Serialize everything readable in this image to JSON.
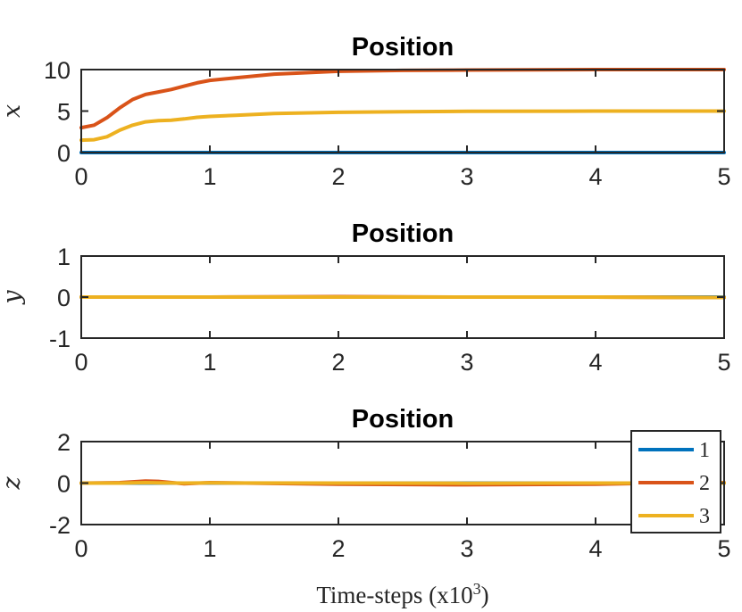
{
  "chart_data": [
    {
      "type": "line",
      "title": "Position",
      "ylabel": "x",
      "xlim": [
        0,
        5
      ],
      "ylim": [
        0,
        10
      ],
      "xticks": [
        "0",
        "1",
        "2",
        "3",
        "4",
        "5"
      ],
      "yticks": [
        "0",
        "5",
        "10"
      ],
      "x": [
        0,
        0.1,
        0.2,
        0.3,
        0.4,
        0.5,
        0.6,
        0.7,
        0.8,
        0.9,
        1.0,
        1.2,
        1.5,
        2.0,
        2.5,
        3.0,
        4.0,
        5.0
      ],
      "series": [
        {
          "name": "1",
          "color": "#0072BD",
          "values": [
            0,
            0,
            0,
            0,
            0,
            0,
            0,
            0,
            0,
            0,
            0,
            0,
            0,
            0,
            0,
            0,
            0,
            0
          ]
        },
        {
          "name": "2",
          "color": "#D95319",
          "values": [
            3.0,
            3.3,
            4.2,
            5.4,
            6.4,
            7.0,
            7.3,
            7.6,
            8.0,
            8.4,
            8.7,
            9.0,
            9.45,
            9.8,
            9.9,
            9.95,
            10.0,
            10.0
          ]
        },
        {
          "name": "3",
          "color": "#EDB120",
          "values": [
            1.5,
            1.55,
            1.9,
            2.7,
            3.3,
            3.7,
            3.85,
            3.9,
            4.05,
            4.25,
            4.35,
            4.5,
            4.7,
            4.85,
            4.93,
            4.97,
            5.0,
            5.0
          ]
        }
      ]
    },
    {
      "type": "line",
      "title": "Position",
      "ylabel": "y",
      "xlim": [
        0,
        5
      ],
      "ylim": [
        -1,
        1
      ],
      "xticks": [
        "0",
        "1",
        "2",
        "3",
        "4",
        "5"
      ],
      "yticks": [
        "-1",
        "0",
        "1"
      ],
      "x": [
        0,
        1,
        2,
        3,
        4,
        5
      ],
      "series": [
        {
          "name": "1",
          "color": "#0072BD",
          "values": [
            0,
            0,
            0,
            0,
            0,
            0
          ]
        },
        {
          "name": "2",
          "color": "#D95319",
          "values": [
            0,
            0,
            0.01,
            0,
            0,
            -0.01
          ]
        },
        {
          "name": "3",
          "color": "#EDB120",
          "values": [
            0,
            0,
            0,
            0,
            0,
            -0.01
          ]
        }
      ]
    },
    {
      "type": "line",
      "title": "Position",
      "ylabel": "z",
      "xlabel_prefix": "Time-steps (x10",
      "xlabel_sup": "3",
      "xlabel_suffix": ")",
      "xlim": [
        0,
        5
      ],
      "ylim": [
        -2,
        2
      ],
      "xticks": [
        "0",
        "1",
        "2",
        "3",
        "4",
        "5"
      ],
      "yticks": [
        "-2",
        "0",
        "2"
      ],
      "x": [
        0,
        0.3,
        0.5,
        0.6,
        0.8,
        1.0,
        2.0,
        3.0,
        4.0,
        4.5,
        5.0
      ],
      "series": [
        {
          "name": "1",
          "color": "#0072BD",
          "values": [
            0,
            0,
            0,
            0,
            0,
            0,
            0,
            0,
            0,
            0,
            0
          ]
        },
        {
          "name": "2",
          "color": "#D95319",
          "values": [
            0,
            0.02,
            0.1,
            0.08,
            -0.03,
            0.02,
            -0.05,
            -0.08,
            -0.05,
            0,
            0.02
          ]
        },
        {
          "name": "3",
          "color": "#EDB120",
          "values": [
            0,
            0,
            0.02,
            0.01,
            0,
            0.01,
            0,
            -0.01,
            0,
            0,
            0
          ]
        }
      ],
      "legend": {
        "position": "bottom-right",
        "entries": [
          "1",
          "2",
          "3"
        ]
      }
    }
  ]
}
